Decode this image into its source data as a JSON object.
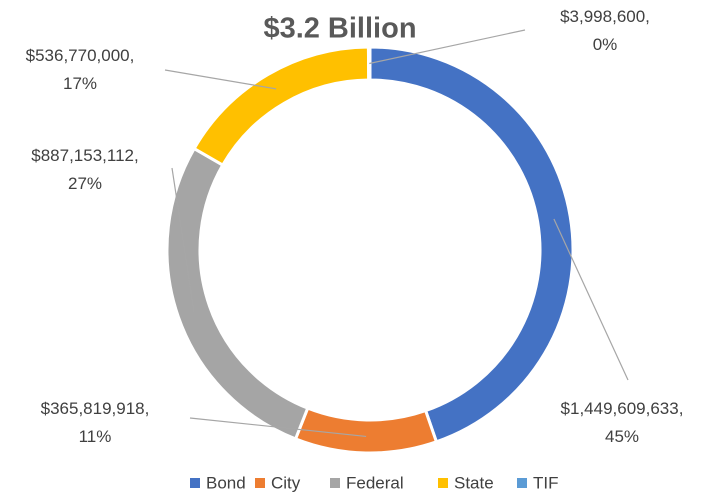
{
  "chart_data": {
    "type": "donut",
    "title": "$3.2 Billion",
    "categories": [
      "Bond",
      "City",
      "Federal",
      "State",
      "TIF"
    ],
    "values": [
      1449609633,
      365819918,
      887153112,
      536770000,
      3998600
    ],
    "value_labels": [
      "$1,449,609,633,",
      "$365,819,918,",
      "$887,153,112,",
      "$536,770,000,",
      "$3,998,600,"
    ],
    "percents": [
      45,
      11,
      27,
      17,
      0
    ],
    "percent_labels": [
      "45%",
      "11%",
      "27%",
      "17%",
      "0%"
    ],
    "colors": [
      "#4472c4",
      "#ed7d31",
      "#a5a5a5",
      "#ffc000",
      "#5b9bd5"
    ],
    "legend": "bottom"
  }
}
